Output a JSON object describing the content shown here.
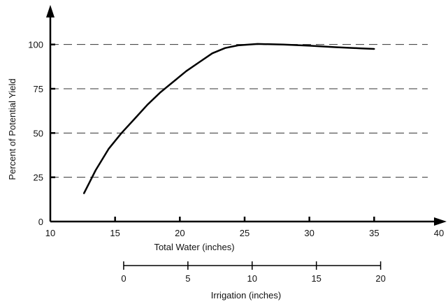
{
  "chart_data": {
    "type": "line",
    "title": "",
    "xlabel": "Total Water (inches)",
    "ylabel": "Percent of Potential Yield",
    "xlim": [
      10,
      40
    ],
    "ylim": [
      0,
      120
    ],
    "x_ticks": [
      "10",
      "15",
      "20",
      "25",
      "30",
      "35",
      "40"
    ],
    "y_ticks": [
      "0",
      "25",
      "50",
      "75",
      "100"
    ],
    "grid": "horizontal dashed at 25, 50, 75, 100",
    "series": [
      {
        "x": [
          12.6,
          13.5,
          14.5,
          15.5,
          16.5,
          17.5,
          18.5,
          19.5,
          20.5,
          21.5,
          22.5,
          23.5,
          24.5,
          26.0,
          28.0,
          30.0,
          32.0,
          34.0,
          35.0
        ],
        "y": [
          16,
          29,
          41,
          50,
          58,
          66,
          73,
          79,
          85,
          90,
          95,
          98,
          99.5,
          100.3,
          100,
          99.3,
          98.5,
          97.8,
          97.5
        ]
      }
    ],
    "secondary_axis": {
      "label": "Irrigation (inches)",
      "ticks": [
        "0",
        "5",
        "10",
        "15",
        "20"
      ],
      "range": [
        0,
        20
      ],
      "total_water_at_start": 15.5,
      "total_water_at_end": 35.5
    }
  }
}
